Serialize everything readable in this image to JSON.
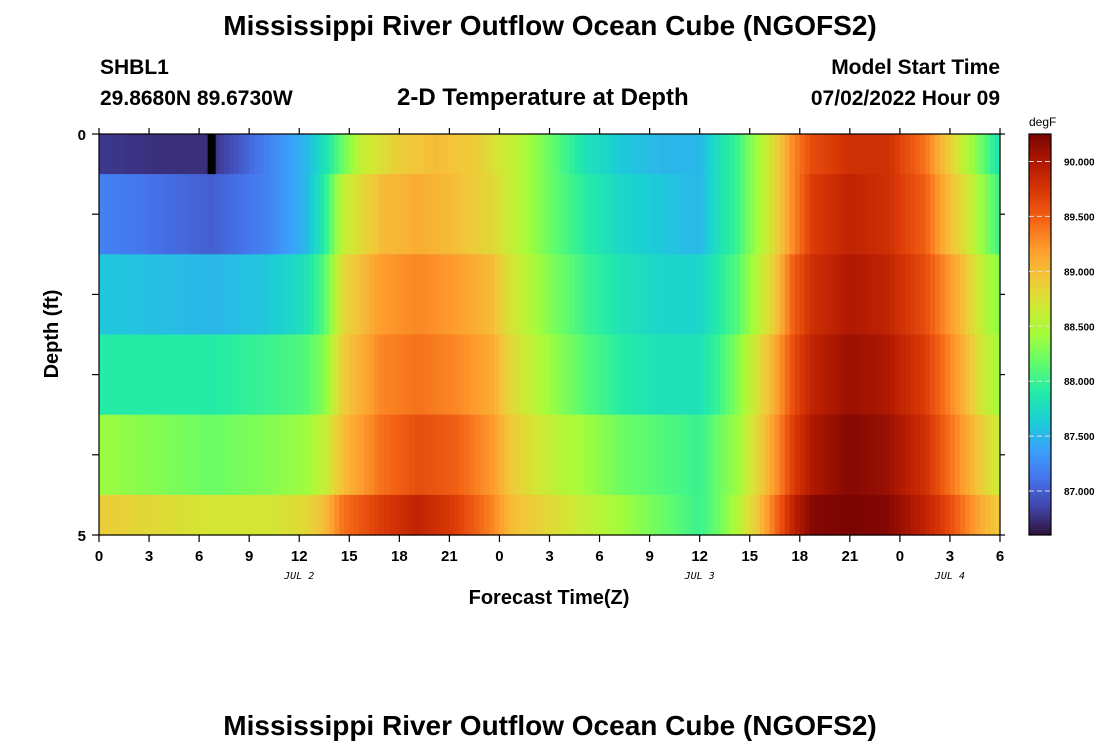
{
  "page": {
    "title": "Mississippi River Outflow Ocean Cube (NGOFS2)",
    "title_repeat": "Mississippi River Outflow Ocean Cube (NGOFS2)",
    "station_id": "SHBL1",
    "station_coords": "29.8680N  89.6730W",
    "subtitle": "2-D Temperature at Depth",
    "model_start_label": "Model Start Time",
    "model_start_value": "07/02/2022 Hour 09"
  },
  "chart_data": {
    "type": "heatmap",
    "xlabel": "Forecast Time(Z)",
    "ylabel": "Depth (ft)",
    "y_ticks": [
      "0",
      "5"
    ],
    "ylim": [
      0,
      5
    ],
    "x_tick_labels": [
      "0",
      "3",
      "6",
      "9",
      "12",
      "15",
      "18",
      "21",
      "0",
      "3",
      "6",
      "9",
      "12",
      "15",
      "18",
      "21",
      "0",
      "3",
      "6"
    ],
    "date_labels": [
      {
        "label": "JUL 2",
        "at_tick": 4
      },
      {
        "label": "JUL 3",
        "at_tick": 12
      },
      {
        "label": "JUL 4",
        "at_tick": 17
      }
    ],
    "colorbar": {
      "unit": "degF",
      "range": [
        86.6,
        90.25
      ],
      "tick_labels": [
        "87.000",
        "87.500",
        "88.000",
        "88.500",
        "89.000",
        "89.500",
        "90.000"
      ],
      "tick_values": [
        87.0,
        87.5,
        88.0,
        88.5,
        89.0,
        89.5,
        90.0
      ],
      "colormap": [
        "#30123b",
        "#4145ab",
        "#4675ed",
        "#39a2fc",
        "#1bcfd4",
        "#24eca6",
        "#61fc6c",
        "#a4fc3b",
        "#d1e834",
        "#f3c63a",
        "#fe9b2d",
        "#f36315",
        "#d93806",
        "#b11901",
        "#7a0403"
      ]
    },
    "time_hours": [
      0,
      48
    ],
    "depth_layers": [
      {
        "depth_range": [
          0,
          0.5
        ],
        "keyframes": [
          [
            0,
            86.8
          ],
          [
            3,
            86.75
          ],
          [
            6,
            86.75
          ],
          [
            9,
            87.2
          ],
          [
            11,
            87.5
          ],
          [
            12,
            87.8
          ],
          [
            14,
            88.6
          ],
          [
            16,
            88.9
          ],
          [
            18,
            89.0
          ],
          [
            20,
            88.9
          ],
          [
            22,
            88.6
          ],
          [
            24,
            88.2
          ],
          [
            26,
            87.8
          ],
          [
            28,
            87.6
          ],
          [
            30,
            87.5
          ],
          [
            32,
            87.5
          ],
          [
            33,
            87.8
          ],
          [
            34,
            88.0
          ],
          [
            35,
            88.4
          ],
          [
            36,
            88.8
          ],
          [
            37,
            89.3
          ],
          [
            38,
            89.6
          ],
          [
            40,
            89.8
          ],
          [
            42,
            89.8
          ],
          [
            44,
            89.4
          ],
          [
            45,
            89.0
          ],
          [
            46,
            88.6
          ],
          [
            47,
            88.2
          ],
          [
            48,
            87.8
          ]
        ]
      },
      {
        "depth_range": [
          0.5,
          1.5
        ],
        "keyframes": [
          [
            0,
            87.2
          ],
          [
            3,
            87.1
          ],
          [
            6,
            87.0
          ],
          [
            9,
            87.2
          ],
          [
            11,
            87.5
          ],
          [
            12,
            87.9
          ],
          [
            13,
            88.6
          ],
          [
            15,
            89.0
          ],
          [
            17,
            89.1
          ],
          [
            19,
            89.0
          ],
          [
            21,
            88.8
          ],
          [
            22,
            88.6
          ],
          [
            24,
            88.2
          ],
          [
            26,
            87.9
          ],
          [
            28,
            87.7
          ],
          [
            30,
            87.6
          ],
          [
            32,
            87.5
          ],
          [
            33,
            87.8
          ],
          [
            34,
            88.0
          ],
          [
            35,
            88.4
          ],
          [
            36,
            88.8
          ],
          [
            37,
            89.3
          ],
          [
            38,
            89.7
          ],
          [
            40,
            89.9
          ],
          [
            42,
            89.8
          ],
          [
            44,
            89.5
          ],
          [
            45,
            89.1
          ],
          [
            46,
            88.8
          ],
          [
            47,
            88.4
          ],
          [
            48,
            88.0
          ]
        ]
      },
      {
        "depth_range": [
          1.5,
          2.5
        ],
        "keyframes": [
          [
            0,
            87.6
          ],
          [
            3,
            87.55
          ],
          [
            6,
            87.5
          ],
          [
            9,
            87.6
          ],
          [
            11,
            87.8
          ],
          [
            12,
            88.1
          ],
          [
            13,
            88.8
          ],
          [
            15,
            89.2
          ],
          [
            17,
            89.3
          ],
          [
            19,
            89.2
          ],
          [
            21,
            89.0
          ],
          [
            22,
            88.7
          ],
          [
            24,
            88.3
          ],
          [
            26,
            88.0
          ],
          [
            28,
            87.8
          ],
          [
            30,
            87.7
          ],
          [
            32,
            87.7
          ],
          [
            33,
            87.9
          ],
          [
            34,
            88.1
          ],
          [
            35,
            88.5
          ],
          [
            36,
            88.9
          ],
          [
            37,
            89.5
          ],
          [
            38,
            89.8
          ],
          [
            40,
            90.0
          ],
          [
            42,
            89.9
          ],
          [
            44,
            89.6
          ],
          [
            45,
            89.3
          ],
          [
            46,
            89.0
          ],
          [
            47,
            88.6
          ],
          [
            48,
            88.3
          ]
        ]
      },
      {
        "depth_range": [
          2.5,
          3.5
        ],
        "keyframes": [
          [
            0,
            87.9
          ],
          [
            3,
            87.9
          ],
          [
            6,
            87.9
          ],
          [
            9,
            88.0
          ],
          [
            11,
            88.1
          ],
          [
            12,
            88.3
          ],
          [
            13,
            88.9
          ],
          [
            15,
            89.3
          ],
          [
            17,
            89.4
          ],
          [
            19,
            89.3
          ],
          [
            21,
            89.1
          ],
          [
            22,
            88.8
          ],
          [
            24,
            88.4
          ],
          [
            26,
            88.1
          ],
          [
            28,
            87.9
          ],
          [
            30,
            87.8
          ],
          [
            32,
            87.8
          ],
          [
            33,
            88.0
          ],
          [
            34,
            88.3
          ],
          [
            35,
            88.7
          ],
          [
            36,
            89.1
          ],
          [
            37,
            89.6
          ],
          [
            38,
            89.9
          ],
          [
            40,
            90.1
          ],
          [
            42,
            90.0
          ],
          [
            44,
            89.7
          ],
          [
            45,
            89.4
          ],
          [
            46,
            89.1
          ],
          [
            47,
            88.7
          ],
          [
            48,
            88.4
          ]
        ]
      },
      {
        "depth_range": [
          3.5,
          4.5
        ],
        "keyframes": [
          [
            0,
            88.4
          ],
          [
            3,
            88.3
          ],
          [
            6,
            88.2
          ],
          [
            9,
            88.3
          ],
          [
            11,
            88.4
          ],
          [
            12,
            88.6
          ],
          [
            13,
            89.0
          ],
          [
            15,
            89.4
          ],
          [
            17,
            89.6
          ],
          [
            19,
            89.5
          ],
          [
            21,
            89.2
          ],
          [
            22,
            88.9
          ],
          [
            24,
            88.6
          ],
          [
            26,
            88.4
          ],
          [
            28,
            88.2
          ],
          [
            30,
            88.1
          ],
          [
            32,
            88.0
          ],
          [
            33,
            88.2
          ],
          [
            34,
            88.4
          ],
          [
            35,
            88.8
          ],
          [
            36,
            89.2
          ],
          [
            37,
            89.7
          ],
          [
            38,
            90.0
          ],
          [
            40,
            90.2
          ],
          [
            42,
            90.1
          ],
          [
            44,
            89.8
          ],
          [
            45,
            89.5
          ],
          [
            46,
            89.2
          ],
          [
            47,
            88.9
          ],
          [
            48,
            88.6
          ]
        ]
      },
      {
        "depth_range": [
          4.5,
          5
        ],
        "keyframes": [
          [
            0,
            88.9
          ],
          [
            3,
            88.8
          ],
          [
            6,
            88.7
          ],
          [
            9,
            88.7
          ],
          [
            11,
            88.8
          ],
          [
            12,
            89.0
          ],
          [
            13,
            89.4
          ],
          [
            15,
            89.7
          ],
          [
            17,
            89.9
          ],
          [
            19,
            89.7
          ],
          [
            21,
            89.3
          ],
          [
            22,
            89.0
          ],
          [
            24,
            88.8
          ],
          [
            26,
            88.6
          ],
          [
            28,
            88.4
          ],
          [
            30,
            88.2
          ],
          [
            32,
            88.0
          ],
          [
            33,
            88.2
          ],
          [
            34,
            88.5
          ],
          [
            35,
            88.9
          ],
          [
            36,
            89.4
          ],
          [
            37,
            89.9
          ],
          [
            38,
            90.2
          ],
          [
            40,
            90.25
          ],
          [
            42,
            90.2
          ],
          [
            44,
            89.9
          ],
          [
            45,
            89.7
          ],
          [
            46,
            89.4
          ],
          [
            47,
            89.1
          ],
          [
            48,
            88.9
          ]
        ]
      }
    ],
    "surface_marker_hour": 6
  }
}
